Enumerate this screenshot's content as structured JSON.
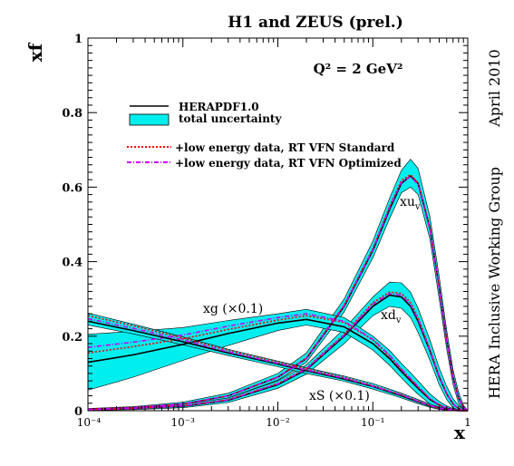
{
  "header": "H1 and ZEUS (prel.)",
  "side_labels": {
    "date": "April 2010",
    "group": "HERA Inclusive Working Group"
  },
  "chart_data": {
    "type": "line",
    "xscale": "log",
    "xlim": [
      0.0001,
      1
    ],
    "ylim": [
      0,
      1
    ],
    "xlabel": "x",
    "ylabel": "xf",
    "xticks": [
      "10⁻⁴",
      "10⁻³",
      "10⁻²",
      "10⁻¹",
      "1"
    ],
    "yticks": [
      "0",
      "0.2",
      "0.4",
      "0.6",
      "0.8",
      "1"
    ],
    "q2_label": "Q² = 2 GeV²",
    "grid": false,
    "legend_position": "top-left",
    "legend": [
      {
        "label": "HERAPDF1.0",
        "style": "solid",
        "color": "#000000"
      },
      {
        "label": "total uncertainty",
        "style": "band",
        "color": "#00eeee"
      },
      {
        "label": "+low energy data, RT VFN Standard",
        "style": "dotted",
        "color": "#ff0000"
      },
      {
        "label": "+low energy data, RT VFN Optimized",
        "style": "dash-dot",
        "color": "#cc00ff"
      }
    ],
    "curve_labels": [
      "xu",
      "xd",
      "xg (×0.1)",
      "xS (×0.1)"
    ],
    "curve_label_subscripts": [
      "v",
      "v"
    ],
    "x": [
      0.0001,
      0.0003,
      0.001,
      0.003,
      0.01,
      0.02,
      0.05,
      0.1,
      0.15,
      0.2,
      0.25,
      0.3,
      0.4,
      0.5,
      0.6,
      0.7,
      0.8,
      0.9
    ],
    "series": [
      {
        "name": "xu",
        "central": [
          0.004,
          0.008,
          0.018,
          0.04,
          0.09,
          0.14,
          0.28,
          0.43,
          0.54,
          0.61,
          0.63,
          0.61,
          0.49,
          0.33,
          0.19,
          0.09,
          0.035,
          0.008
        ],
        "band_lo": [
          0.002,
          0.005,
          0.013,
          0.034,
          0.082,
          0.13,
          0.265,
          0.41,
          0.515,
          0.585,
          0.6,
          0.58,
          0.46,
          0.3,
          0.165,
          0.07,
          0.02,
          0.002
        ],
        "band_hi": [
          0.006,
          0.011,
          0.023,
          0.047,
          0.1,
          0.155,
          0.3,
          0.455,
          0.57,
          0.645,
          0.675,
          0.65,
          0.52,
          0.36,
          0.215,
          0.11,
          0.05,
          0.015
        ],
        "standard": [
          0.004,
          0.008,
          0.018,
          0.04,
          0.091,
          0.142,
          0.284,
          0.435,
          0.548,
          0.618,
          0.633,
          0.612,
          0.49,
          0.33,
          0.19,
          0.088,
          0.034,
          0.008
        ],
        "optimized": [
          0.004,
          0.008,
          0.018,
          0.04,
          0.09,
          0.14,
          0.282,
          0.432,
          0.545,
          0.613,
          0.628,
          0.607,
          0.485,
          0.327,
          0.188,
          0.087,
          0.033,
          0.008
        ]
      },
      {
        "name": "xd",
        "central": [
          0.003,
          0.006,
          0.012,
          0.028,
          0.07,
          0.11,
          0.2,
          0.28,
          0.31,
          0.305,
          0.28,
          0.24,
          0.16,
          0.09,
          0.045,
          0.018,
          0.006,
          0.001
        ],
        "band_lo": [
          0.001,
          0.003,
          0.008,
          0.022,
          0.06,
          0.098,
          0.18,
          0.255,
          0.28,
          0.275,
          0.25,
          0.21,
          0.135,
          0.07,
          0.03,
          0.008,
          0.001,
          0.0
        ],
        "band_hi": [
          0.005,
          0.009,
          0.017,
          0.034,
          0.08,
          0.123,
          0.22,
          0.305,
          0.345,
          0.343,
          0.318,
          0.275,
          0.19,
          0.115,
          0.065,
          0.032,
          0.014,
          0.004
        ],
        "standard": [
          0.003,
          0.006,
          0.013,
          0.03,
          0.073,
          0.114,
          0.205,
          0.29,
          0.318,
          0.315,
          0.29,
          0.25,
          0.165,
          0.093,
          0.046,
          0.018,
          0.006,
          0.001
        ],
        "optimized": [
          0.003,
          0.006,
          0.013,
          0.029,
          0.072,
          0.112,
          0.203,
          0.286,
          0.314,
          0.31,
          0.285,
          0.245,
          0.162,
          0.091,
          0.045,
          0.018,
          0.006,
          0.001
        ]
      },
      {
        "name": "xg (×0.1)",
        "central": [
          0.13,
          0.15,
          0.178,
          0.207,
          0.235,
          0.245,
          0.225,
          0.18,
          0.14,
          0.105,
          0.08,
          0.06,
          0.03,
          0.015,
          0.007,
          0.003,
          0.001,
          0.0
        ],
        "band_lo": [
          0.055,
          0.09,
          0.135,
          0.175,
          0.215,
          0.23,
          0.21,
          0.163,
          0.122,
          0.088,
          0.063,
          0.044,
          0.018,
          0.006,
          0.001,
          0.0,
          0.0,
          0.0
        ],
        "band_hi": [
          0.205,
          0.213,
          0.223,
          0.242,
          0.26,
          0.272,
          0.25,
          0.2,
          0.162,
          0.127,
          0.102,
          0.08,
          0.045,
          0.025,
          0.013,
          0.006,
          0.002,
          0.0
        ],
        "standard": [
          0.155,
          0.172,
          0.193,
          0.218,
          0.243,
          0.255,
          0.237,
          0.19,
          0.147,
          0.111,
          0.085,
          0.064,
          0.032,
          0.016,
          0.007,
          0.003,
          0.001,
          0.0
        ],
        "optimized": [
          0.17,
          0.184,
          0.203,
          0.227,
          0.25,
          0.26,
          0.24,
          0.192,
          0.149,
          0.112,
          0.086,
          0.065,
          0.032,
          0.016,
          0.007,
          0.003,
          0.001,
          0.0
        ]
      },
      {
        "name": "xS (×0.1)",
        "central": [
          0.24,
          0.215,
          0.185,
          0.155,
          0.125,
          0.107,
          0.085,
          0.065,
          0.05,
          0.04,
          0.031,
          0.024,
          0.013,
          0.007,
          0.003,
          0.001,
          0.0,
          0.0
        ],
        "band_lo": [
          0.23,
          0.206,
          0.177,
          0.148,
          0.118,
          0.1,
          0.079,
          0.058,
          0.044,
          0.034,
          0.026,
          0.019,
          0.009,
          0.004,
          0.001,
          0.0,
          0.0,
          0.0
        ],
        "band_hi": [
          0.262,
          0.232,
          0.198,
          0.165,
          0.133,
          0.115,
          0.093,
          0.073,
          0.058,
          0.047,
          0.038,
          0.03,
          0.018,
          0.01,
          0.005,
          0.002,
          0.001,
          0.0
        ],
        "standard": [
          0.255,
          0.228,
          0.195,
          0.162,
          0.13,
          0.112,
          0.089,
          0.068,
          0.053,
          0.043,
          0.034,
          0.026,
          0.014,
          0.007,
          0.003,
          0.001,
          0.0,
          0.0
        ],
        "optimized": [
          0.247,
          0.221,
          0.19,
          0.158,
          0.127,
          0.109,
          0.087,
          0.066,
          0.052,
          0.042,
          0.033,
          0.025,
          0.014,
          0.007,
          0.003,
          0.001,
          0.0,
          0.0
        ]
      }
    ],
    "colors": {
      "band": "#00eeee",
      "central": "#000000",
      "standard": "#ff0000",
      "optimized": "#cc00ff",
      "frame": "#000000",
      "background": "#ffffff"
    }
  }
}
